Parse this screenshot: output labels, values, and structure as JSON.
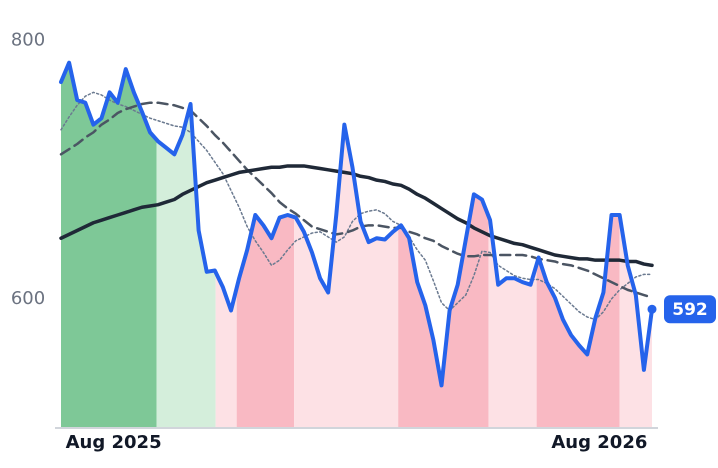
{
  "chart_data": {
    "type": "line",
    "x": [
      -1.3,
      -1.1,
      -0.9,
      -0.7,
      -0.5,
      -0.3,
      -0.1,
      0.1,
      0.3,
      0.5,
      0.7,
      0.9,
      1.1,
      1.3,
      1.5,
      1.7,
      1.9,
      2.1,
      2.3,
      2.5,
      2.7,
      2.9,
      3.1,
      3.3,
      3.5,
      3.7,
      3.9,
      4.1,
      4.3,
      4.5,
      4.7,
      4.9,
      5.1,
      5.3,
      5.5,
      5.7,
      5.9,
      6.1,
      6.3,
      6.5,
      6.7,
      6.9,
      7.1,
      7.3,
      7.5,
      7.7,
      7.9,
      8.1,
      8.3,
      8.5,
      8.7,
      8.9,
      9.1,
      9.3,
      9.5,
      9.7,
      9.9,
      10.1,
      10.3,
      10.5,
      10.7,
      10.9,
      11.1,
      11.3,
      11.5,
      11.7,
      11.9,
      12.1,
      12.3,
      12.5,
      12.7,
      12.9,
      13.1,
      13.3
    ],
    "series": [
      {
        "color": "#2563eb",
        "style": "main",
        "values": [
          768,
          783,
          754,
          752,
          735,
          740,
          760,
          752,
          778,
          760,
          745,
          729,
          722,
          717,
          712,
          727,
          751,
          653,
          621,
          622,
          609,
          591,
          616,
          638,
          665,
          657,
          647,
          663,
          665,
          663,
          652,
          636,
          616,
          605,
          665,
          735,
          702,
          660,
          644,
          647,
          646,
          652,
          657,
          647,
          613,
          595,
          568,
          533,
          591,
          611,
          646,
          681,
          677,
          661,
          611,
          616,
          616,
          613,
          611,
          632,
          613,
          601,
          584,
          572,
          564,
          557,
          585,
          605,
          665,
          665,
          626,
          603,
          545,
          592
        ]
      },
      {
        "color": "#1f2937",
        "style": "thick",
        "values": [
          647,
          650,
          653,
          656,
          659,
          661,
          663,
          665,
          667,
          669,
          671,
          672,
          673,
          675,
          677,
          681,
          684,
          687,
          690,
          692,
          694,
          696,
          698,
          699,
          700,
          701,
          702,
          702,
          703,
          703,
          703,
          702,
          701,
          700,
          699,
          698,
          697,
          695,
          694,
          692,
          691,
          689,
          688,
          685,
          681,
          678,
          674,
          670,
          666,
          662,
          659,
          655,
          652,
          649,
          647,
          645,
          643,
          642,
          640,
          638,
          636,
          634,
          633,
          632,
          631,
          631,
          630,
          630,
          630,
          630,
          629,
          629,
          627,
          626
        ]
      },
      {
        "color": "#4b5563",
        "style": "dashed",
        "values": [
          712,
          716,
          720,
          725,
          729,
          735,
          739,
          744,
          747,
          749,
          751,
          752,
          752,
          751,
          750,
          748,
          746,
          740,
          734,
          727,
          721,
          714,
          707,
          700,
          694,
          688,
          682,
          675,
          670,
          666,
          661,
          656,
          654,
          652,
          650,
          651,
          653,
          656,
          657,
          657,
          656,
          655,
          655,
          652,
          650,
          647,
          645,
          641,
          638,
          635,
          633,
          633,
          634,
          634,
          634,
          634,
          634,
          634,
          633,
          631,
          630,
          629,
          627,
          626,
          624,
          622,
          619,
          616,
          613,
          610,
          607,
          605,
          603,
          601
        ]
      },
      {
        "color": "#6b7a90",
        "style": "dotted",
        "values": [
          731,
          741,
          750,
          757,
          760,
          758,
          754,
          751,
          749,
          746,
          743,
          740,
          738,
          736,
          734,
          733,
          729,
          722,
          715,
          706,
          697,
          684,
          671,
          656,
          645,
          636,
          626,
          630,
          638,
          645,
          648,
          651,
          652,
          648,
          644,
          648,
          660,
          666,
          668,
          669,
          666,
          660,
          657,
          648,
          638,
          630,
          614,
          597,
          591,
          597,
          603,
          618,
          637,
          636,
          626,
          622,
          618,
          616,
          615,
          615,
          612,
          608,
          602,
          596,
          590,
          586,
          584,
          590,
          600,
          607,
          612,
          617,
          619,
          619
        ]
      }
    ],
    "bands": [
      {
        "from": -1.3,
        "to": 1.06,
        "color": "#7ec897"
      },
      {
        "from": 1.06,
        "to": 2.52,
        "color": "#d4eedb"
      },
      {
        "from": 2.52,
        "to": 3.04,
        "color": "#fde1e5"
      },
      {
        "from": 3.04,
        "to": 4.46,
        "color": "#f9b9c3"
      },
      {
        "from": 4.46,
        "to": 7.03,
        "color": "#fde1e5"
      },
      {
        "from": 7.03,
        "to": 9.26,
        "color": "#f9b9c3"
      },
      {
        "from": 9.26,
        "to": 10.45,
        "color": "#fde1e5"
      },
      {
        "from": 10.45,
        "to": 12.5,
        "color": "#f9b9c3"
      },
      {
        "from": 12.5,
        "to": 13.3,
        "color": "#fde1e5"
      }
    ],
    "xlim": [
      -1.3,
      13.3
    ],
    "xticks": [
      {
        "value": 0,
        "label": "Aug 2025"
      },
      {
        "value": 12,
        "label": "Aug 2026"
      }
    ],
    "ylim": [
      500,
      830
    ],
    "yticks": [
      600,
      800
    ],
    "grid": false
  }
}
